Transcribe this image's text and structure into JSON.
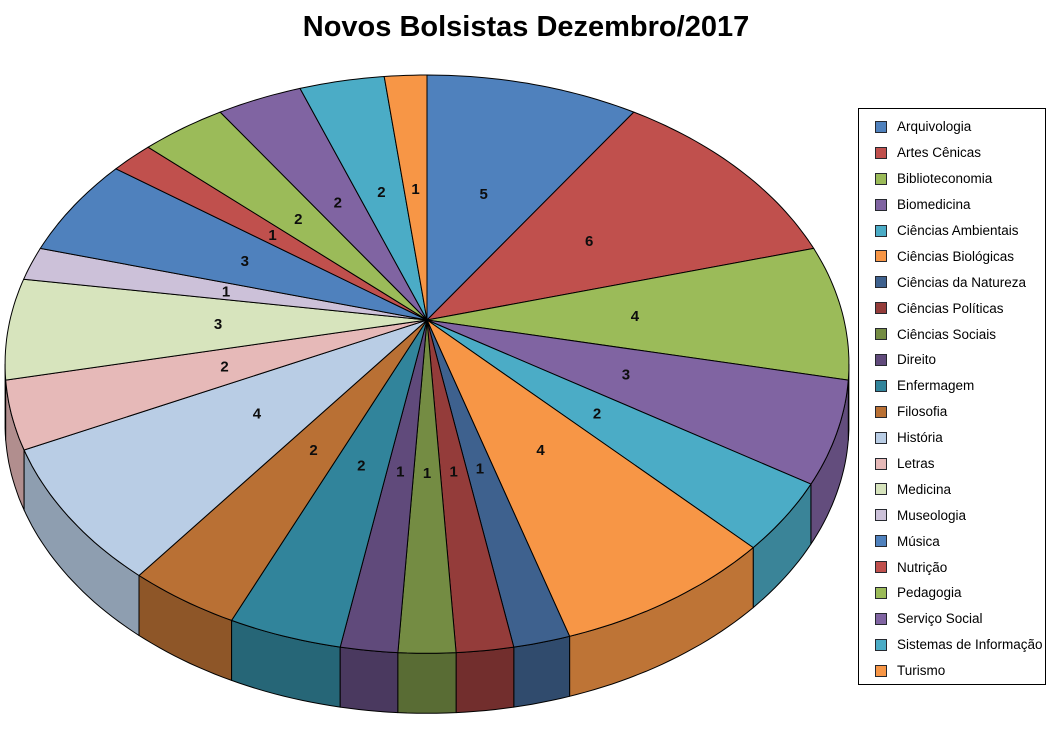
{
  "title": "Novos Bolsistas Dezembro/2017",
  "chart_data": {
    "type": "pie",
    "style": "3d",
    "title": "Novos Bolsistas Dezembro/2017",
    "direction": "clockwise",
    "start_angle_deg": 0,
    "total": 53,
    "legend_position": "right",
    "background_color": "#FFFFFF",
    "data_labels": "values",
    "categories": [
      "Arquivologia",
      "Artes Cênicas",
      "Biblioteconomia",
      "Biomedicina",
      "Ciências Ambientais",
      "Ciências Biológicas",
      "Ciências da Natureza",
      "Ciências Políticas",
      "Ciências Sociais",
      "Direito",
      "Enfermagem",
      "Filosofia",
      "História",
      "Letras",
      "Medicina",
      "Museologia",
      "Música",
      "Nutrição",
      "Pedagogia",
      "Serviço Social",
      "Sistemas de Informação",
      "Turismo"
    ],
    "values": [
      5,
      6,
      4,
      3,
      2,
      4,
      1,
      1,
      1,
      1,
      2,
      2,
      4,
      2,
      3,
      1,
      3,
      1,
      2,
      2,
      2,
      1
    ],
    "colors": [
      "#4F81BD",
      "#C0504D",
      "#9BBB59",
      "#8064A2",
      "#4BACC6",
      "#F79646",
      "#3E618E",
      "#943C3A",
      "#748C43",
      "#604A7B",
      "#31849B",
      "#B97034",
      "#B9CDE5",
      "#E6B9B8",
      "#D7E4BD",
      "#CCC1D9",
      "#4F81BD",
      "#C0504D",
      "#9BBB59",
      "#8064A2",
      "#4BACC6",
      "#F79646"
    ]
  },
  "legend": {
    "position": "right",
    "border_color": "#000000"
  }
}
